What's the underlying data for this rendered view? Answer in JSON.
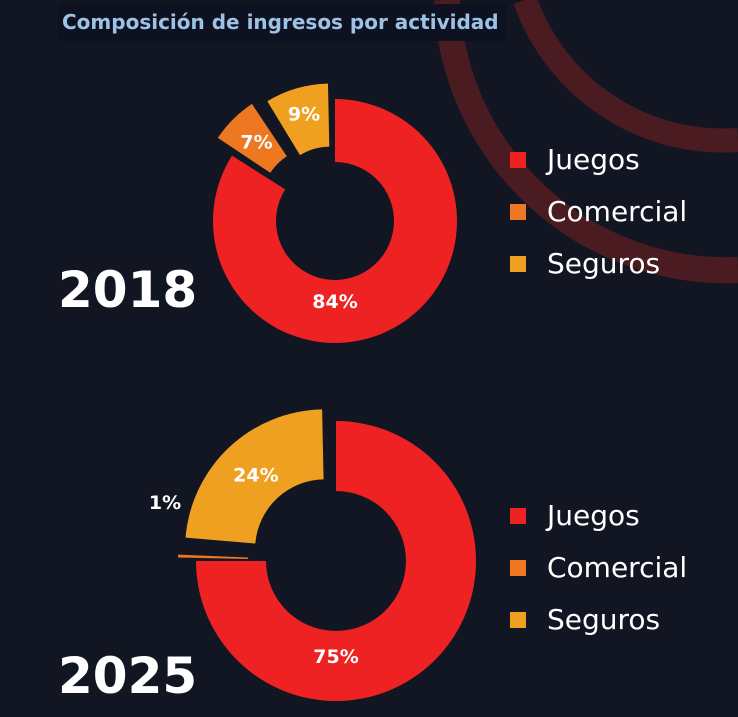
{
  "title": "Composición de ingresos por actividad",
  "colors": {
    "background": "#121623",
    "juegos": "#ee2222",
    "comercial": "#ee7722",
    "seguros": "#f0a020",
    "title_text": "#9cc3e6",
    "decorative_arc": "#4a1c22"
  },
  "chart_data": [
    {
      "type": "pie",
      "style": "donut",
      "year": "2018",
      "categories": [
        "Juegos",
        "Comercial",
        "Seguros"
      ],
      "values": [
        84,
        7,
        9
      ],
      "labels": [
        "84%",
        "7%",
        "9%"
      ],
      "legend": "right"
    },
    {
      "type": "pie",
      "style": "donut",
      "year": "2025",
      "categories": [
        "Juegos",
        "Comercial",
        "Seguros"
      ],
      "values": [
        75,
        1,
        24
      ],
      "labels": [
        "75%",
        "1%",
        "24%"
      ],
      "legend": "right"
    }
  ]
}
